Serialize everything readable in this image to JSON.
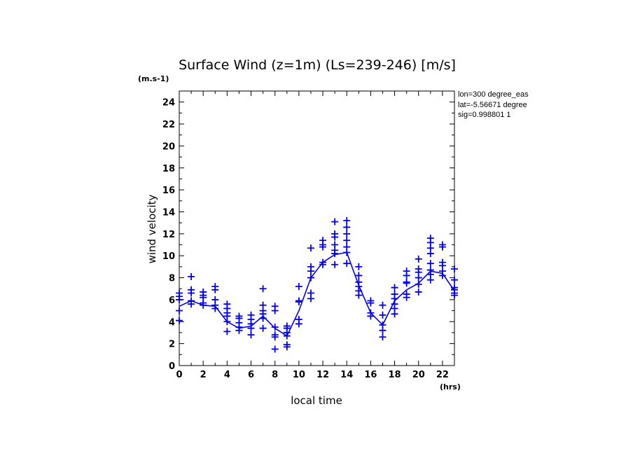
{
  "chart_data": {
    "type": "scatter",
    "title": "Surface Wind (z=1m) (Ls=239-246) [m/s]",
    "yunits": "(m.s-1)",
    "xunits": "(hrs)",
    "xlabel": "local time",
    "ylabel": "wind velocity",
    "xlim": [
      0,
      23
    ],
    "ylim": [
      0,
      25
    ],
    "x_ticks": [
      "0",
      "2",
      "4",
      "6",
      "8",
      "10",
      "12",
      "14",
      "16",
      "18",
      "20",
      "22"
    ],
    "y_ticks": [
      "0",
      "2",
      "4",
      "6",
      "8",
      "10",
      "12",
      "14",
      "16",
      "18",
      "20",
      "22",
      "24"
    ],
    "info": [
      "lon=300 degree_eas",
      "lat=-5.56671 degree",
      "sig=0.998801 1"
    ],
    "colors": {
      "series": "#0000ee",
      "axis": "#000000"
    },
    "series": [
      {
        "kind": "points",
        "marker": "plus",
        "points": [
          [
            0,
            4.1
          ],
          [
            0,
            5.0
          ],
          [
            0,
            6.0
          ],
          [
            0,
            6.3
          ],
          [
            0,
            6.6
          ],
          [
            1,
            5.6
          ],
          [
            1,
            5.9
          ],
          [
            1,
            6.6
          ],
          [
            1,
            6.9
          ],
          [
            1,
            8.1
          ],
          [
            2,
            5.5
          ],
          [
            2,
            5.7
          ],
          [
            2,
            6.2
          ],
          [
            2,
            6.4
          ],
          [
            2,
            6.7
          ],
          [
            3,
            5.2
          ],
          [
            3,
            5.5
          ],
          [
            3,
            6.0
          ],
          [
            3,
            6.9
          ],
          [
            3,
            7.2
          ],
          [
            4,
            3.1
          ],
          [
            4,
            4.0
          ],
          [
            4,
            4.5
          ],
          [
            4,
            4.8
          ],
          [
            4,
            5.2
          ],
          [
            4,
            5.6
          ],
          [
            5,
            3.2
          ],
          [
            5,
            3.5
          ],
          [
            5,
            3.9
          ],
          [
            5,
            4.3
          ],
          [
            5,
            4.5
          ],
          [
            6,
            2.8
          ],
          [
            6,
            3.4
          ],
          [
            6,
            3.8
          ],
          [
            6,
            4.2
          ],
          [
            6,
            4.6
          ],
          [
            7,
            3.4
          ],
          [
            7,
            4.3
          ],
          [
            7,
            4.7
          ],
          [
            7,
            5.0
          ],
          [
            7,
            5.5
          ],
          [
            7,
            7.0
          ],
          [
            8,
            1.5
          ],
          [
            8,
            2.6
          ],
          [
            8,
            2.8
          ],
          [
            8,
            3.5
          ],
          [
            8,
            5.0
          ],
          [
            8,
            5.4
          ],
          [
            9,
            1.7
          ],
          [
            9,
            1.9
          ],
          [
            9,
            2.7
          ],
          [
            9,
            3.0
          ],
          [
            9,
            3.4
          ],
          [
            9,
            3.6
          ],
          [
            10,
            3.8
          ],
          [
            10,
            4.2
          ],
          [
            10,
            5.8
          ],
          [
            10,
            5.9
          ],
          [
            10,
            7.2
          ],
          [
            11,
            6.1
          ],
          [
            11,
            6.6
          ],
          [
            11,
            8.0
          ],
          [
            11,
            8.6
          ],
          [
            11,
            9.0
          ],
          [
            11,
            10.7
          ],
          [
            12,
            9.2
          ],
          [
            12,
            9.4
          ],
          [
            12,
            10.8
          ],
          [
            12,
            11.0
          ],
          [
            12,
            11.4
          ],
          [
            13,
            9.2
          ],
          [
            13,
            10.2
          ],
          [
            13,
            10.5
          ],
          [
            13,
            11.0
          ],
          [
            13,
            11.7
          ],
          [
            13,
            12.0
          ],
          [
            13,
            13.1
          ],
          [
            14,
            9.3
          ],
          [
            14,
            10.3
          ],
          [
            14,
            10.8
          ],
          [
            14,
            11.4
          ],
          [
            14,
            12.0
          ],
          [
            14,
            12.6
          ],
          [
            14,
            13.2
          ],
          [
            15,
            6.4
          ],
          [
            15,
            6.8
          ],
          [
            15,
            7.2
          ],
          [
            15,
            7.6
          ],
          [
            15,
            8.2
          ],
          [
            15,
            9.0
          ],
          [
            16,
            4.5
          ],
          [
            16,
            4.8
          ],
          [
            16,
            5.7
          ],
          [
            16,
            5.9
          ],
          [
            17,
            2.6
          ],
          [
            17,
            3.2
          ],
          [
            17,
            3.7
          ],
          [
            17,
            4.6
          ],
          [
            17,
            5.5
          ],
          [
            18,
            4.7
          ],
          [
            18,
            5.2
          ],
          [
            18,
            5.6
          ],
          [
            18,
            6.1
          ],
          [
            18,
            6.5
          ],
          [
            18,
            7.1
          ],
          [
            19,
            6.2
          ],
          [
            19,
            6.5
          ],
          [
            19,
            7.5
          ],
          [
            19,
            7.6
          ],
          [
            19,
            8.2
          ],
          [
            19,
            8.6
          ],
          [
            20,
            6.7
          ],
          [
            20,
            7.4
          ],
          [
            20,
            8.0
          ],
          [
            20,
            8.5
          ],
          [
            20,
            8.8
          ],
          [
            20,
            9.7
          ],
          [
            21,
            7.8
          ],
          [
            21,
            8.3
          ],
          [
            21,
            8.7
          ],
          [
            21,
            9.3
          ],
          [
            21,
            10.2
          ],
          [
            21,
            10.7
          ],
          [
            21,
            11.2
          ],
          [
            21,
            11.6
          ],
          [
            22,
            8.2
          ],
          [
            22,
            8.6
          ],
          [
            22,
            9.1
          ],
          [
            22,
            9.4
          ],
          [
            22,
            10.8
          ],
          [
            22,
            11.0
          ],
          [
            23,
            6.4
          ],
          [
            23,
            6.6
          ],
          [
            23,
            6.9
          ],
          [
            23,
            7.1
          ],
          [
            23,
            7.8
          ],
          [
            23,
            8.8
          ]
        ]
      },
      {
        "kind": "line",
        "x": [
          0,
          1,
          2,
          3,
          4,
          5,
          6,
          7,
          8,
          9,
          10,
          11,
          12,
          13,
          14,
          15,
          16,
          17,
          18,
          19,
          20,
          21,
          22,
          23
        ],
        "y": [
          5.4,
          5.9,
          5.5,
          5.4,
          4.0,
          3.4,
          3.6,
          4.5,
          3.4,
          2.7,
          5.0,
          8.0,
          9.4,
          10.1,
          10.3,
          7.3,
          4.8,
          3.7,
          5.9,
          6.9,
          7.5,
          8.6,
          8.4,
          6.8
        ]
      }
    ]
  }
}
